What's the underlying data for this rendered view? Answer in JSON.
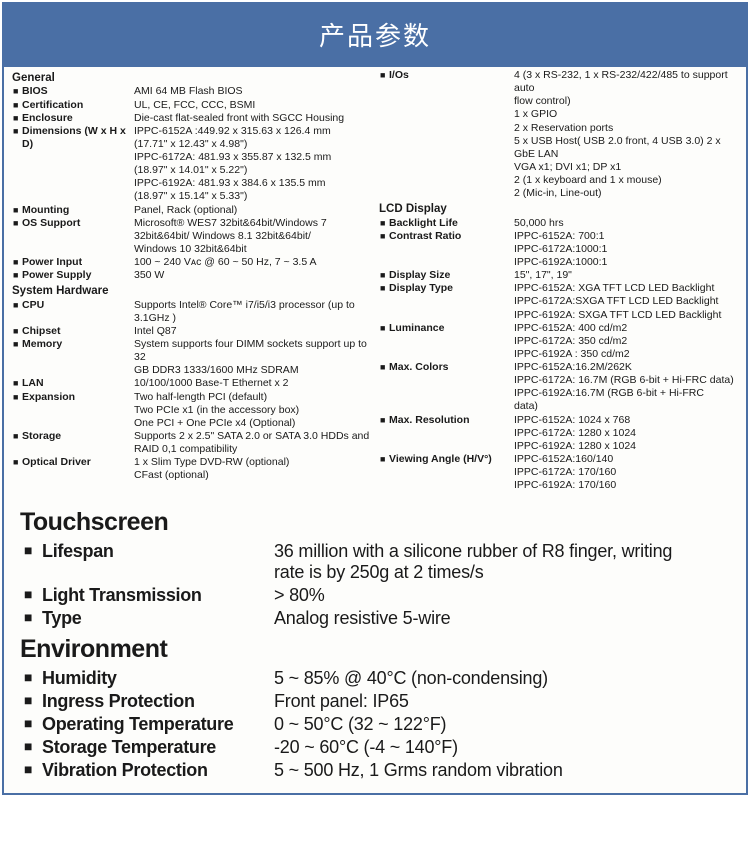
{
  "header": {
    "title": "产品参数"
  },
  "left": {
    "general": {
      "title": "General",
      "bios": {
        "label": "BIOS",
        "value": "AMI 64 MB Flash BIOS"
      },
      "cert": {
        "label": "Certification",
        "value": "UL, CE, FCC, CCC, BSMI"
      },
      "enclosure": {
        "label": "Enclosure",
        "value": "Die-cast flat-sealed front with SGCC Housing"
      },
      "dims": {
        "label": "Dimensions (W x H x D)",
        "l1": "IPPC-6152A :449.92 x 315.63 x 126.4 mm",
        "l2": "(17.71\" x 12.43\" x 4.98\")",
        "l3": "IPPC-6172A: 481.93 x 355.87 x 132.5 mm",
        "l4": "(18.97\" x 14.01\" x 5.22\")",
        "l5": "IPPC-6192A: 481.93 x 384.6 x 135.5 mm",
        "l6": "(18.97\" x 15.14\" x 5.33\")"
      },
      "mounting": {
        "label": "Mounting",
        "value": "Panel, Rack (optional)"
      },
      "os": {
        "label": "OS Support",
        "l1": "Microsoft® WES7 32bit&64bit/Windows 7",
        "l2": "32bit&64bit/ Windows 8.1 32bit&64bit/",
        "l3": "Windows 10 32bit&64bit"
      },
      "pinput": {
        "label": "Power Input",
        "value": "100 ~ 240 Vᴀᴄ @ 60 ~ 50 Hz, 7 ~ 3.5 A"
      },
      "psupply": {
        "label": "Power Supply",
        "value": "350 W"
      }
    },
    "hardware": {
      "title": "System Hardware",
      "cpu": {
        "label": "CPU",
        "l1": "Supports Intel® Core™ i7/i5/i3 processor (up to",
        "l2": "3.1GHz )"
      },
      "chipset": {
        "label": "Chipset",
        "value": "Intel Q87"
      },
      "memory": {
        "label": "Memory",
        "l1": "System supports four DIMM sockets support up to 32",
        "l2": "GB DDR3 1333/1600 MHz SDRAM"
      },
      "lan": {
        "label": "LAN",
        "value": "10/100/1000 Base-T Ethernet x 2"
      },
      "expansion": {
        "label": "Expansion",
        "l1": "Two half-length PCI (default)",
        "l2": "Two PCIe x1 (in the accessory box)",
        "l3": "One PCI + One PCIe x4 (Optional)"
      },
      "storage": {
        "label": "Storage",
        "l1": "Supports 2 x 2.5\" SATA 2.0 or SATA 3.0 HDDs and",
        "l2": "RAID 0,1 compatibility"
      },
      "optical": {
        "label": "Optical Driver",
        "l1": "1 x Slim Type DVD-RW (optional)",
        "l2": "CFast (optional)"
      }
    }
  },
  "right": {
    "ios": {
      "label": "I/Os",
      "l1": "4 (3 x RS-232, 1 x RS-232/422/485 to support auto",
      "l2": "flow control)",
      "l3": "1 x GPIO",
      "l4": "2 x Reservation ports",
      "l5": "5 x USB Host( USB 2.0 front, 4 USB 3.0) 2 x GbE LAN",
      "l6": "VGA x1; DVI x1; DP x1",
      "l7": "2 (1 x keyboard and 1 x mouse)",
      "l8": "2 (Mic-in, Line-out)"
    },
    "lcd": {
      "title": "LCD Display",
      "backlight": {
        "label": "Backlight Life",
        "value": "50,000 hrs"
      },
      "contrast": {
        "label": "Contrast Ratio",
        "l1": "IPPC-6152A: 700:1",
        "l2": "IPPC-6172A:1000:1",
        "l3": "IPPC-6192A:1000:1"
      },
      "size": {
        "label": "Display Size",
        "value": "15\", 17\", 19\""
      },
      "type": {
        "label": "Display Type",
        "l1": "IPPC-6152A: XGA TFT LCD LED Backlight",
        "l2": "IPPC-6172A:SXGA TFT LCD LED Backlight",
        "l3": "IPPC-6192A: SXGA TFT LCD LED Backlight"
      },
      "lum": {
        "label": "Luminance",
        "l1": "IPPC-6152A: 400 cd/m2",
        "l2": "IPPC-6172A: 350 cd/m2",
        "l3": "IPPC-6192A : 350 cd/m2"
      },
      "colors": {
        "label": "Max. Colors",
        "l1": "IPPC-6152A:16.2M/262K",
        "l2": "IPPC-6172A: 16.7M (RGB 6-bit + Hi-FRC data)",
        "l3": "IPPC-6192A:16.7M (RGB 6-bit + Hi-FRC",
        "l4": "data)"
      },
      "res": {
        "label": "Max. Resolution",
        "l1": "IPPC-6152A: 1024 x 768",
        "l2": "IPPC-6172A: 1280 x 1024",
        "l3": "IPPC-6192A: 1280 x 1024"
      },
      "angle": {
        "label": "Viewing Angle (H/V°)",
        "l1": "IPPC-6152A:160/140",
        "l2": "IPPC-6172A: 170/160",
        "l3": "IPPC-6192A: 170/160"
      }
    }
  },
  "touchscreen": {
    "title": "Touchscreen",
    "lifespan": {
      "label": "Lifespan",
      "l1": "36 million with a silicone rubber of R8 finger, writing",
      "l2": "rate is by 250g at 2 times/s"
    },
    "light": {
      "label": "Light Transmission",
      "value": "> 80%"
    },
    "type": {
      "label": "Type",
      "value": "Analog resistive 5-wire"
    }
  },
  "environment": {
    "title": "Environment",
    "humidity": {
      "label": "Humidity",
      "value": "5 ~ 85% @ 40°C (non-condensing)"
    },
    "ingress": {
      "label": "Ingress Protection",
      "value": "Front panel: IP65"
    },
    "optemp": {
      "label": "Operating Temperature",
      "value": "0 ~ 50°C (32 ~ 122°F)"
    },
    "sttemp": {
      "label": "Storage Temperature",
      "value": "-20 ~ 60°C (-4 ~ 140°F)"
    },
    "vib": {
      "label": "Vibration Protection",
      "value": "5 ~ 500 Hz, 1 Grms random vibration"
    }
  }
}
